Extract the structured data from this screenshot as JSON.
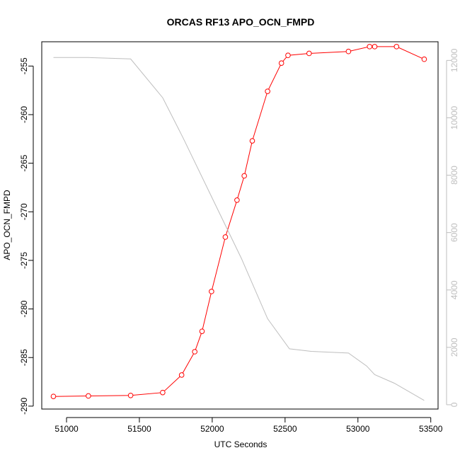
{
  "chart_data": {
    "type": "line",
    "title": "ORCAS RF13 APO_OCN_FMPD",
    "xlabel": "UTC Seconds",
    "ylabel": "APO_OCN_FMPD",
    "xlim": [
      50830,
      53550
    ],
    "ylim": [
      -290.3,
      -252.5
    ],
    "y2lim": [
      -150,
      12650
    ],
    "x_ticks": [
      51000,
      51500,
      52000,
      52500,
      53000,
      53500
    ],
    "y_ticks": [
      -290,
      -285,
      -280,
      -275,
      -270,
      -265,
      -260,
      -255
    ],
    "y2_ticks": [
      0,
      2000,
      4000,
      6000,
      8000,
      10000,
      12000
    ],
    "series": [
      {
        "color": "#ff0000",
        "marker": "circle-open",
        "axis": "left",
        "x": [
          50910,
          51150,
          51440,
          51660,
          51790,
          51880,
          51930,
          51995,
          52090,
          52170,
          52220,
          52275,
          52380,
          52475,
          52520,
          52665,
          52935,
          53080,
          53115,
          53265,
          53455
        ],
        "values": [
          -289.0,
          -288.95,
          -288.9,
          -288.6,
          -286.8,
          -284.4,
          -282.3,
          -278.2,
          -272.6,
          -268.8,
          -266.3,
          -262.7,
          -257.6,
          -254.7,
          -253.9,
          -253.7,
          -253.5,
          -253.0,
          -253.0,
          -253.0,
          -254.3
        ]
      },
      {
        "color": "#bebebe",
        "marker": "none",
        "axis": "right",
        "x": [
          50910,
          51150,
          51440,
          51660,
          51800,
          52000,
          52200,
          52380,
          52530,
          52680,
          52935,
          53060,
          53115,
          53250,
          53455
        ],
        "values": [
          12100,
          12100,
          12050,
          10700,
          9300,
          7200,
          5100,
          3000,
          1950,
          1860,
          1800,
          1350,
          1050,
          750,
          150
        ]
      }
    ]
  }
}
